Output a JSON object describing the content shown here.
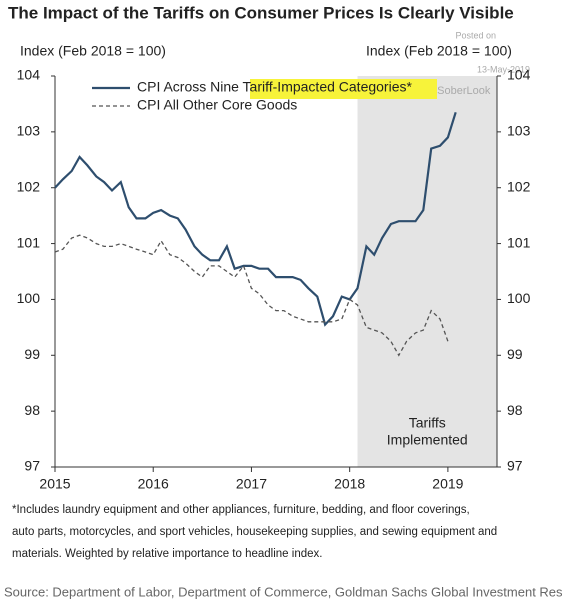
{
  "chart_data": {
    "type": "line",
    "title": "The Impact of the Tariffs on Consumer Prices Is Clearly Visible",
    "y_label": "Index (Feb 2018 = 100)",
    "y2_label": "Index (Feb 2018 = 100)",
    "x": [
      2015.0,
      2015.08,
      2015.17,
      2015.25,
      2015.33,
      2015.42,
      2015.5,
      2015.58,
      2015.67,
      2015.75,
      2015.83,
      2015.92,
      2016.0,
      2016.08,
      2016.17,
      2016.25,
      2016.33,
      2016.42,
      2016.5,
      2016.58,
      2016.67,
      2016.75,
      2016.83,
      2016.92,
      2017.0,
      2017.08,
      2017.17,
      2017.25,
      2017.33,
      2017.42,
      2017.5,
      2017.58,
      2017.67,
      2017.75,
      2017.83,
      2017.92,
      2018.0,
      2018.08,
      2018.17,
      2018.25,
      2018.33,
      2018.42,
      2018.5,
      2018.58,
      2018.67,
      2018.75,
      2018.83,
      2018.92,
      2019.0,
      2019.08,
      2019.17
    ],
    "series": [
      {
        "name": "CPI Across Nine Tariff-Impacted Categories*",
        "color": "#2e4e6e",
        "dash": false,
        "values": [
          102.0,
          102.15,
          102.3,
          102.55,
          102.4,
          102.2,
          102.1,
          101.95,
          102.1,
          101.65,
          101.45,
          101.45,
          101.55,
          101.6,
          101.5,
          101.45,
          101.25,
          100.95,
          100.8,
          100.7,
          100.7,
          100.95,
          100.55,
          100.6,
          100.6,
          100.55,
          100.55,
          100.4,
          100.4,
          100.4,
          100.35,
          100.2,
          100.05,
          99.55,
          99.7,
          100.05,
          100.0,
          100.2,
          100.95,
          100.8,
          101.1,
          101.35,
          101.4,
          101.4,
          101.4,
          101.6,
          102.7,
          102.75,
          102.9,
          103.35,
          null
        ]
      },
      {
        "name": "CPI All Other Core Goods",
        "color": "#555555",
        "dash": true,
        "values": [
          100.85,
          100.9,
          101.1,
          101.15,
          101.1,
          101.0,
          100.95,
          100.95,
          101.0,
          100.95,
          100.9,
          100.85,
          100.8,
          101.05,
          100.8,
          100.75,
          100.65,
          100.5,
          100.4,
          100.6,
          100.6,
          100.5,
          100.4,
          100.6,
          100.2,
          100.1,
          99.9,
          99.8,
          99.8,
          99.7,
          99.65,
          99.6,
          99.6,
          99.6,
          99.6,
          99.65,
          100.0,
          99.9,
          99.5,
          99.45,
          99.4,
          99.25,
          99.0,
          99.25,
          99.4,
          99.45,
          99.8,
          99.65,
          99.25,
          null,
          null
        ]
      }
    ],
    "xlim": [
      2015,
      2019.5
    ],
    "xticks": [
      2015,
      2016,
      2017,
      2018,
      2019
    ],
    "ylim": [
      97,
      104
    ],
    "yticks": [
      97,
      98,
      99,
      100,
      101,
      102,
      103,
      104
    ],
    "y2lim": [
      97,
      104
    ],
    "y2ticks": [
      97,
      98,
      99,
      100,
      101,
      102,
      103,
      104
    ],
    "shade": {
      "from": 2018.08,
      "to": 2019.5,
      "color": "#e4e4e4",
      "label": [
        "Tariffs",
        "Implemented"
      ]
    },
    "legend": "upper left",
    "watermark": [
      "Posted on",
      "13-May-2019",
      "@SoberLook"
    ],
    "footnote": [
      "*Includes laundry equipment and other appliances, furniture, bedding, and floor coverings,",
      "auto parts, motorcycles, and sport vehicles, housekeeping supplies, and sewing equipment and",
      "materials. Weighted by relative importance to headline index."
    ],
    "source": "Source: Department of Labor, Department of Commerce, Goldman Sachs Global Investment Research"
  }
}
